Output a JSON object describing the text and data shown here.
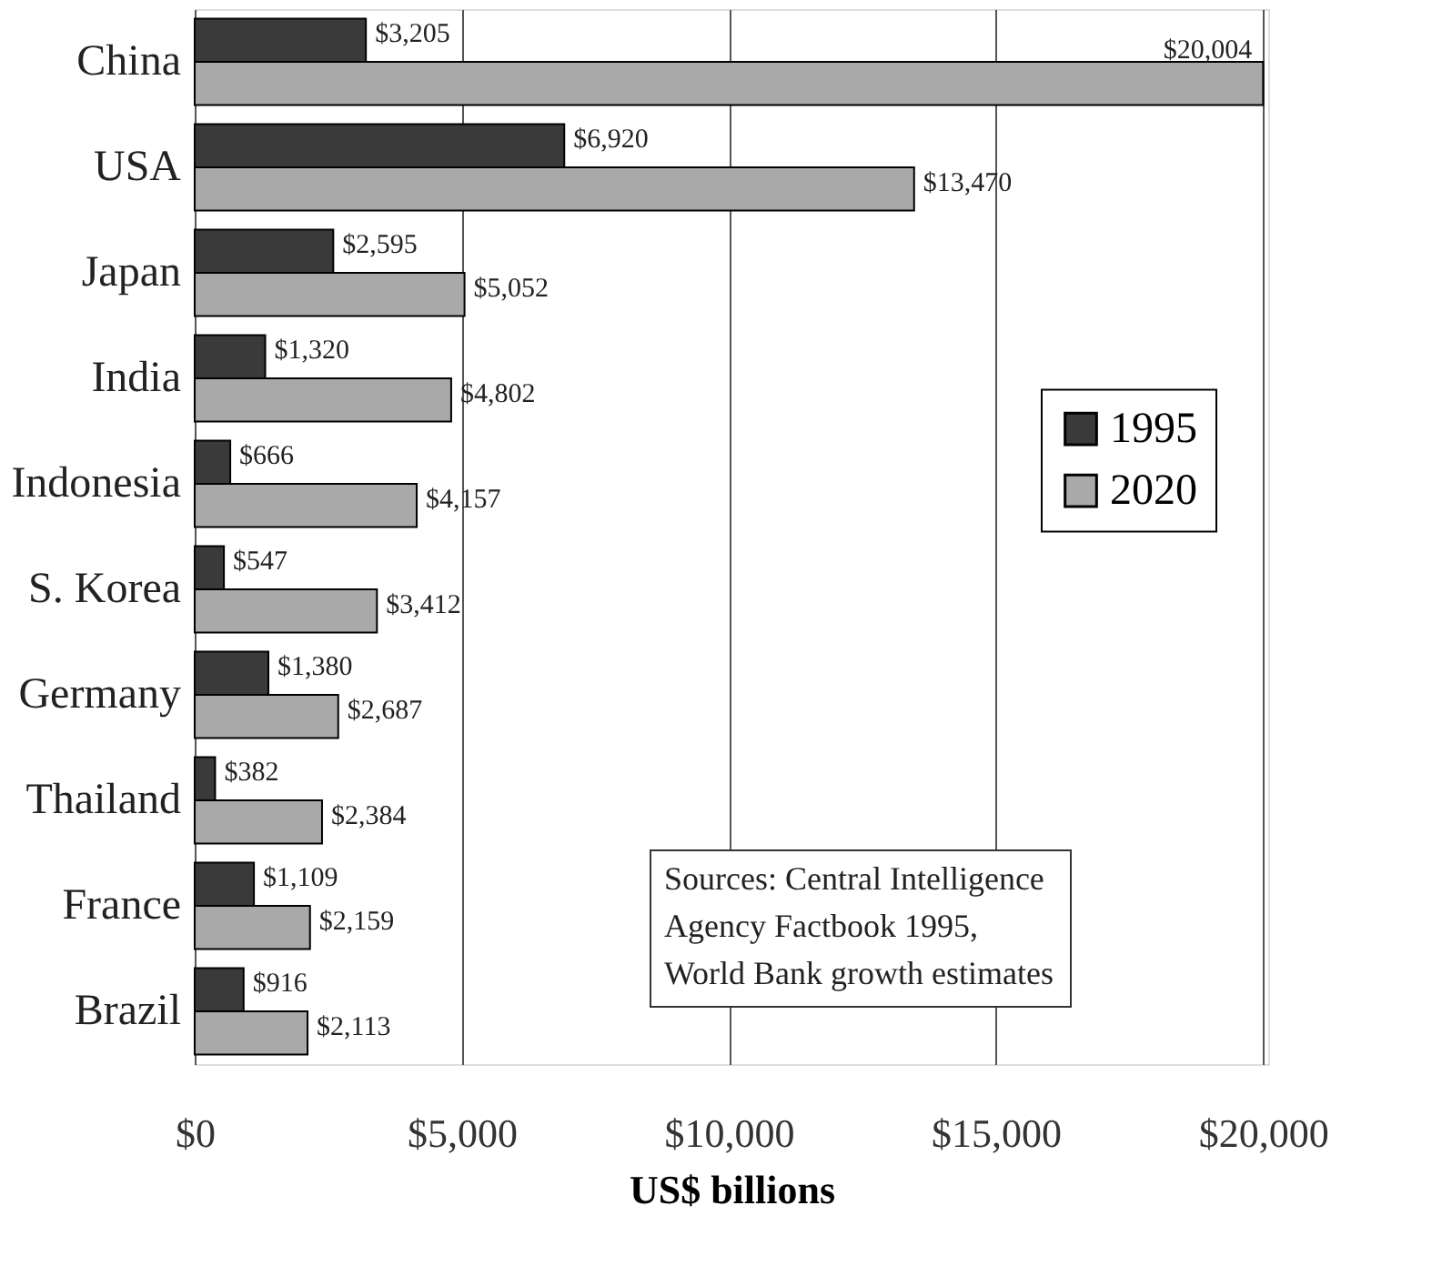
{
  "chart_data": {
    "type": "bar",
    "orientation": "horizontal",
    "xlabel": "US$ billions",
    "categories": [
      "China",
      "USA",
      "Japan",
      "India",
      "Indonesia",
      "S. Korea",
      "Germany",
      "Thailand",
      "France",
      "Brazil"
    ],
    "series": [
      {
        "name": "1995",
        "color": "#3a3a3a",
        "values": [
          3205,
          6920,
          2595,
          1320,
          666,
          547,
          1380,
          382,
          1109,
          916
        ],
        "value_labels": [
          "$3,205",
          "$6,920",
          "$2,595",
          "$1,320",
          "$666",
          "$547",
          "$1,380",
          "$382",
          "$1,109",
          "$916"
        ]
      },
      {
        "name": "2020",
        "color": "#a9a9a9",
        "values": [
          20004,
          13470,
          5052,
          4802,
          4157,
          3412,
          2687,
          2384,
          2159,
          2113
        ],
        "value_labels": [
          "$20,004",
          "$13,470",
          "$5,052",
          "$4,802",
          "$4,157",
          "$3,412",
          "$2,687",
          "$2,384",
          "$2,159",
          "$2,113"
        ]
      }
    ],
    "xlim": [
      0,
      20100
    ],
    "xticks": [
      {
        "value": 0,
        "label": "$0"
      },
      {
        "value": 5000,
        "label": "$5,000"
      },
      {
        "value": 10000,
        "label": "$10,000"
      },
      {
        "value": 15000,
        "label": "$15,000"
      },
      {
        "value": 20000,
        "label": "$20,000"
      }
    ],
    "grid": "x",
    "legend": "right",
    "annotations": [
      "Sources: Central Intelligence\nAgency Factbook 1995,\nWorld Bank growth estimates"
    ]
  }
}
